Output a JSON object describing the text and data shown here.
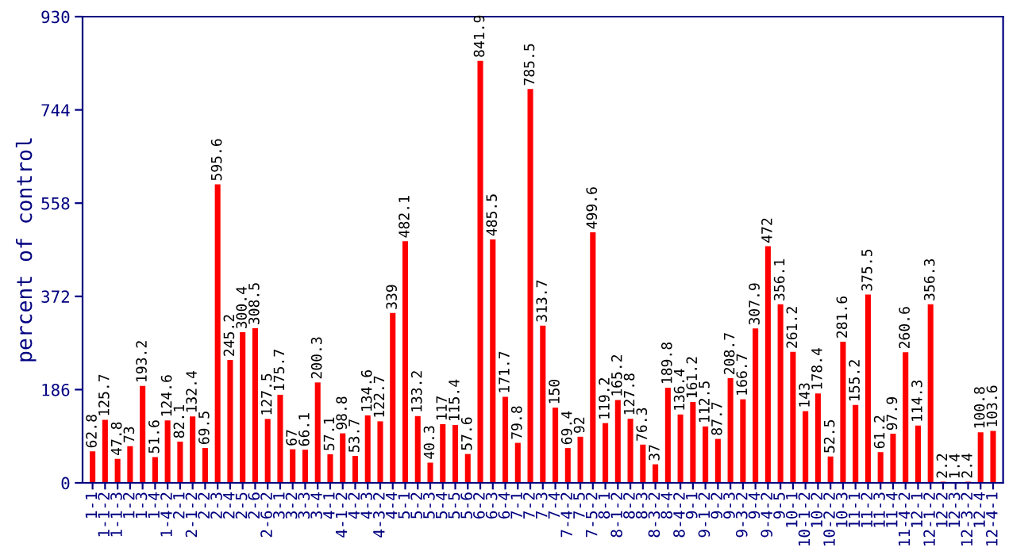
{
  "chart_data": {
    "type": "bar",
    "ylabel": "percent of control",
    "categories": [
      "1-1",
      "1-1-2",
      "1-1-3",
      "1-2",
      "1-3",
      "1-4",
      "1-4-2",
      "2-1",
      "2-1-2",
      "2-2",
      "2-3",
      "2-4",
      "2-5",
      "2-6",
      "2-6-2",
      "3-1",
      "3-2",
      "3-3",
      "3-4",
      "4-1",
      "4-1-2",
      "4-2",
      "4-3",
      "4-3-2",
      "4-4",
      "5-1",
      "5-2",
      "5-3",
      "5-4",
      "5-5",
      "5-6",
      "6-2",
      "6-3",
      "6-4",
      "7-1",
      "7-2",
      "7-3",
      "7-4",
      "7-4-2",
      "7-5",
      "7-5-2",
      "8-1",
      "8-1-2",
      "8-2",
      "8-3",
      "8-3-2",
      "8-4",
      "8-4-2",
      "9-1",
      "9-1-2",
      "9-2",
      "9-3",
      "9-3-2",
      "9-4",
      "9-4-2",
      "9-5",
      "10-1",
      "10-1-2",
      "10-2",
      "10-2-2",
      "10-3",
      "11-1",
      "11-2",
      "11-3",
      "11-4",
      "11-4-2",
      "12-1",
      "12-1-2",
      "12-2",
      "12-3",
      "12-3-2",
      "12-4",
      "12-4-1"
    ],
    "values": [
      62.8,
      125.7,
      47.8,
      73,
      193.2,
      51.6,
      124.6,
      82.1,
      132.4,
      69.5,
      595.6,
      245.2,
      300.4,
      308.5,
      127.5,
      175.7,
      67,
      66.1,
      200.3,
      57.1,
      98.8,
      53.7,
      134.6,
      122.7,
      339,
      482.1,
      133.2,
      40.3,
      117,
      115.4,
      57.6,
      841.9,
      485.5,
      171.7,
      79.8,
      785.5,
      313.7,
      150,
      69.4,
      92,
      499.6,
      119.2,
      165.2,
      127.8,
      76.3,
      37,
      189.8,
      136.4,
      161.2,
      112.5,
      87.7,
      208.7,
      166.7,
      307.9,
      472,
      356.1,
      261.2,
      143,
      178.4,
      52.5,
      281.6,
      155.2,
      375.5,
      61.2,
      97.9,
      260.6,
      114.3,
      356.3,
      2.2,
      1.4,
      2.4,
      100.8,
      103.6
    ],
    "color": "#ff0000",
    "ylim": [
      0,
      930
    ],
    "yticks": [
      0,
      186,
      372,
      558,
      744,
      930
    ],
    "grid": false,
    "data_labels": true
  }
}
